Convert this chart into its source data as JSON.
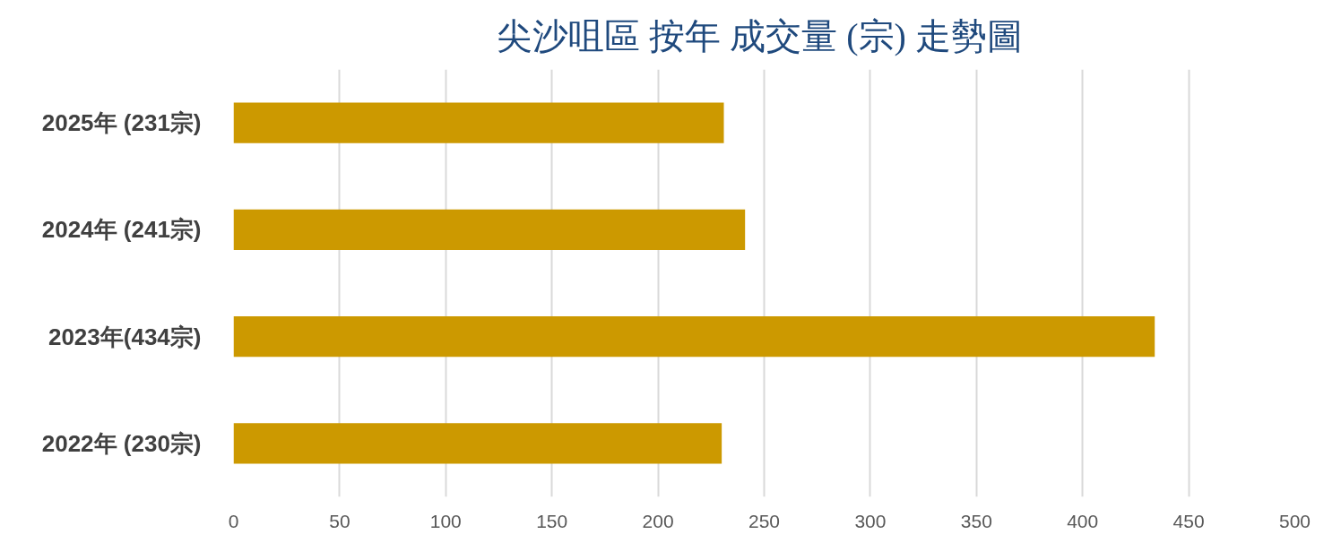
{
  "chart_data": {
    "type": "bar",
    "orientation": "horizontal",
    "title": "尖沙咀區  按年 成交量 (宗) 走勢圖",
    "categories": [
      "2025年 (231宗)",
      "2024年 (241宗)",
      "2023年(434宗)",
      "2022年 (230宗)"
    ],
    "values": [
      231,
      241,
      434,
      230
    ],
    "color": "#cc9900",
    "xlim": [
      0,
      500
    ],
    "xticks": [
      0,
      50,
      100,
      150,
      200,
      250,
      300,
      350,
      400,
      450,
      500
    ],
    "grid": "x"
  }
}
